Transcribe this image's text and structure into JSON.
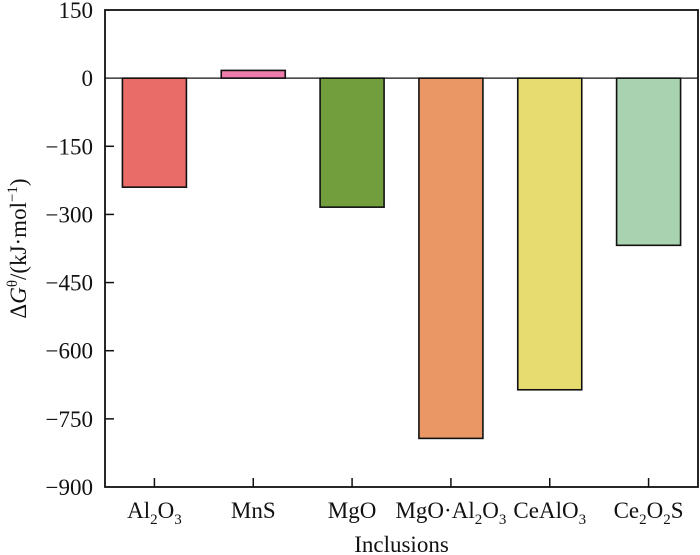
{
  "chart_data": {
    "type": "bar",
    "title": "",
    "xlabel": "Inclusions",
    "ylabel": "ΔGθ/(kJ·mol−1)",
    "ylabel_parts": {
      "delta": "Δ",
      "g": "G",
      "theta": "θ",
      "unit_open": "/(kJ·mol",
      "exp": "−1",
      "unit_close": ")"
    },
    "categories": [
      "Al2O3",
      "MnS",
      "MgO",
      "MgO·Al2O3",
      "CeAlO3",
      "Ce2O2S"
    ],
    "values": [
      -240,
      17,
      -284,
      -793,
      -686,
      -368
    ],
    "colors": [
      "#e96c68",
      "#ee7cab",
      "#739e3d",
      "#ea9765",
      "#e6dc6f",
      "#a9d3b0"
    ],
    "ylim": [
      -900,
      150
    ],
    "yticks": [
      150,
      0,
      -150,
      -300,
      -450,
      -600,
      -750,
      -900
    ],
    "ytick_labels": [
      "150",
      "0",
      "−150",
      "−300",
      "−450",
      "−600",
      "−750",
      "−900"
    ],
    "grid": false,
    "zero_line": true
  }
}
